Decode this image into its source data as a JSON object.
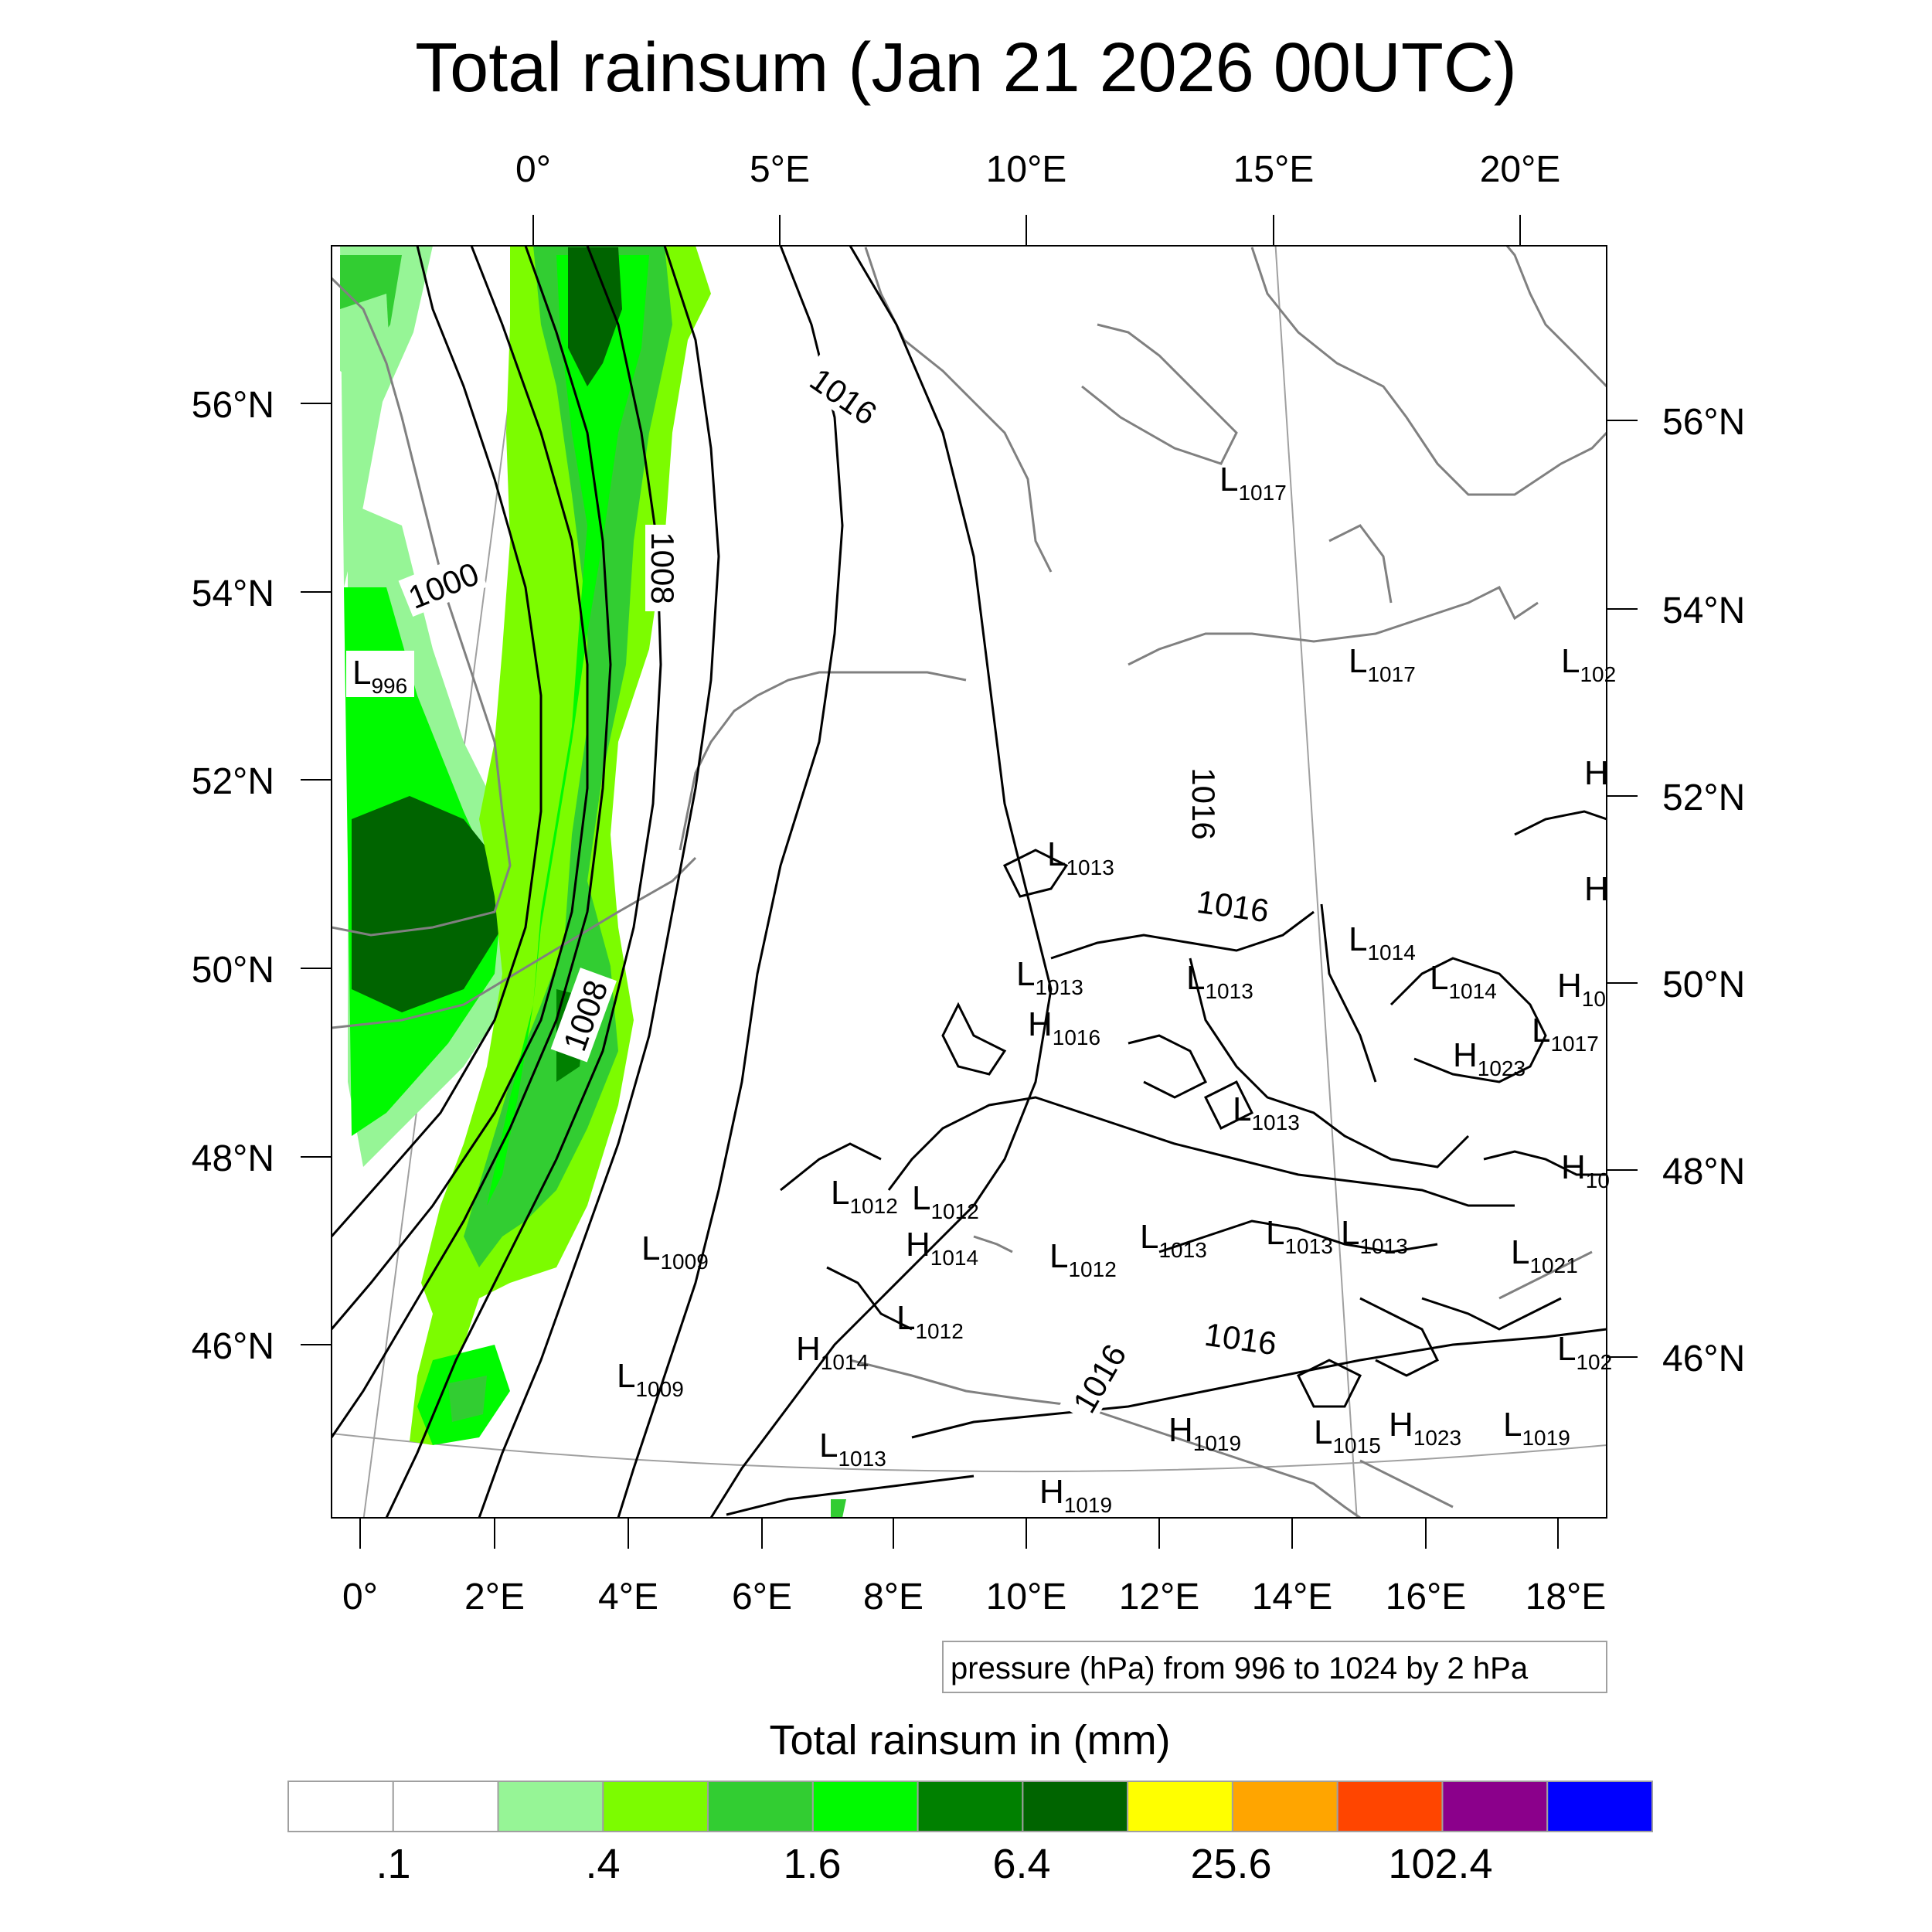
{
  "title": "Total rainsum (Jan 21 2026 00UTC)",
  "top_lon_labels": [
    "0°",
    "5°E",
    "10°E",
    "15°E",
    "20°E"
  ],
  "bottom_lon_labels": [
    "0°",
    "2°E",
    "4°E",
    "6°E",
    "8°E",
    "10°E",
    "12°E",
    "14°E",
    "16°E",
    "18°E"
  ],
  "left_lat_labels": [
    "56°N",
    "54°N",
    "52°N",
    "50°N",
    "48°N",
    "46°N"
  ],
  "right_lat_labels": [
    "56°N",
    "54°N",
    "52°N",
    "50°N",
    "48°N",
    "46°N"
  ],
  "isobar_labels": [
    "1000",
    "1008",
    "1016",
    "1016",
    "1008",
    "1016",
    "1016",
    "1016"
  ],
  "pressure_centers": [
    {
      "t": "L",
      "v": "996"
    },
    {
      "t": "L",
      "v": "1017"
    },
    {
      "t": "L",
      "v": "1017"
    },
    {
      "t": "L",
      "v": "102"
    },
    {
      "t": "H",
      "v": ""
    },
    {
      "t": "H",
      "v": ""
    },
    {
      "t": "L",
      "v": "1013"
    },
    {
      "t": "L",
      "v": "1014"
    },
    {
      "t": "L",
      "v": "1014"
    },
    {
      "t": "L",
      "v": "1013"
    },
    {
      "t": "L",
      "v": "1013"
    },
    {
      "t": "H",
      "v": "10"
    },
    {
      "t": "H",
      "v": "1016"
    },
    {
      "t": "L",
      "v": "1017"
    },
    {
      "t": "H",
      "v": "1023"
    },
    {
      "t": "L",
      "v": "1013"
    },
    {
      "t": "H",
      "v": "10"
    },
    {
      "t": "L",
      "v": "1012"
    },
    {
      "t": "L",
      "v": "1012"
    },
    {
      "t": "L",
      "v": "1009"
    },
    {
      "t": "H",
      "v": "1014"
    },
    {
      "t": "L",
      "v": "1012"
    },
    {
      "t": "L",
      "v": "1013"
    },
    {
      "t": "L",
      "v": "1013"
    },
    {
      "t": "L",
      "v": "1013"
    },
    {
      "t": "L",
      "v": "1021"
    },
    {
      "t": "L",
      "v": "1012"
    },
    {
      "t": "H",
      "v": "1014"
    },
    {
      "t": "L",
      "v": "1009"
    },
    {
      "t": "L",
      "v": "102"
    },
    {
      "t": "H",
      "v": "1019"
    },
    {
      "t": "L",
      "v": "1015"
    },
    {
      "t": "H",
      "v": "1023"
    },
    {
      "t": "L",
      "v": "1019"
    },
    {
      "t": "L",
      "v": "1013"
    },
    {
      "t": "H",
      "v": "1019"
    }
  ],
  "contour_note": "pressure (hPa) from 996 to 1024 by 2 hPa",
  "colorbar": {
    "title": "Total rainsum in (mm)",
    "colors": [
      "#ffffff",
      "#ffffff",
      "#96f596",
      "#7cfc00",
      "#32cd32",
      "#00fa00",
      "#008000",
      "#006400",
      "#ffff00",
      "#ffa500",
      "#ff4500",
      "#8b008b",
      "#0000ff"
    ],
    "labels": [
      ".1",
      ".4",
      "1.6",
      "6.4",
      "25.6",
      "102.4"
    ]
  },
  "colors": {
    "coastline": "#808080",
    "isobar": "#000000",
    "graticule": "#a0a0a0"
  }
}
